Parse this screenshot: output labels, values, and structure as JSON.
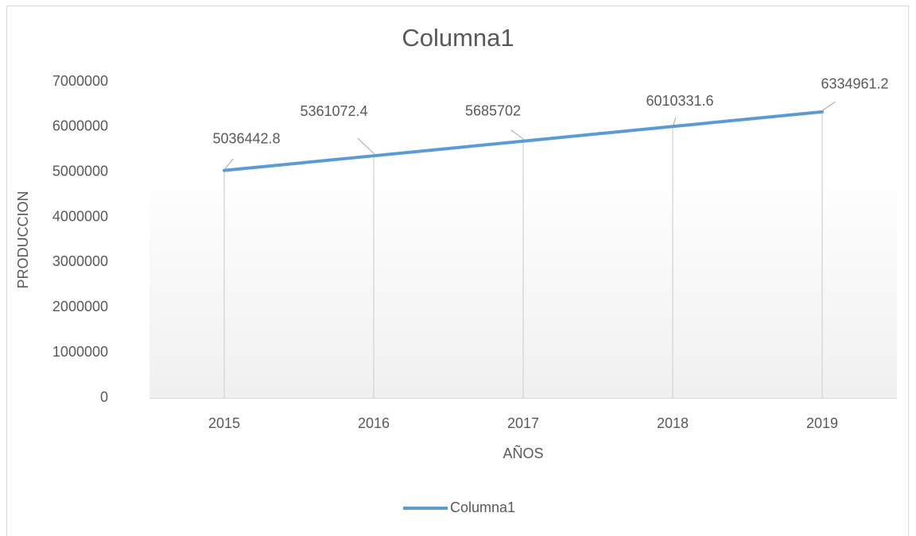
{
  "chart_data": {
    "type": "line",
    "title": "Columna1",
    "x_label": "AÑOS",
    "y_label": "PRODUCCION",
    "categories": [
      "2015",
      "2016",
      "2017",
      "2018",
      "2019"
    ],
    "series": [
      {
        "name": "Columna1",
        "color": "#5b9bd5",
        "values": [
          5036442.8,
          5361072.4,
          5685702,
          6010331.6,
          6334961.2
        ]
      }
    ],
    "ylim": [
      0,
      7000000
    ],
    "yticks": [
      0,
      1000000,
      2000000,
      3000000,
      4000000,
      5000000,
      6000000,
      7000000
    ],
    "data_labels": true,
    "drop_lines": true,
    "grid": false,
    "legend": "bottom"
  }
}
